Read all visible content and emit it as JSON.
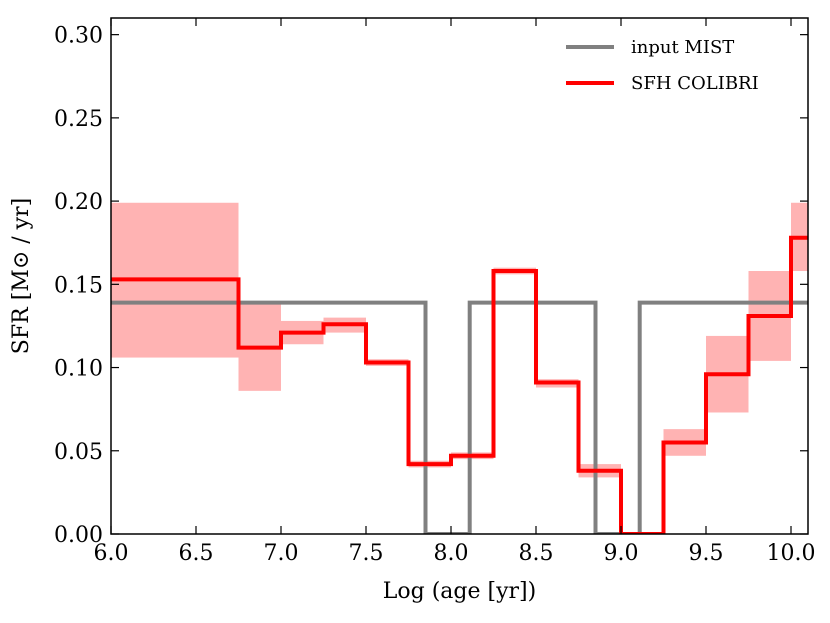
{
  "chart_data": {
    "type": "line",
    "xlabel": "Log (age [yr])",
    "ylabel": "SFR [M⊙ / yr]",
    "xlim": [
      6.0,
      10.1
    ],
    "ylim": [
      0.0,
      0.31
    ],
    "xticks": [
      {
        "value": 6.0,
        "label": "6.0"
      },
      {
        "value": 6.5,
        "label": "6.5"
      },
      {
        "value": 7.0,
        "label": "7.0"
      },
      {
        "value": 7.5,
        "label": "7.5"
      },
      {
        "value": 8.0,
        "label": "8.0"
      },
      {
        "value": 8.5,
        "label": "8.5"
      },
      {
        "value": 9.0,
        "label": "9.0"
      },
      {
        "value": 9.5,
        "label": "9.5"
      },
      {
        "value": 10.0,
        "label": "10.0"
      }
    ],
    "yticks": [
      {
        "value": 0.0,
        "label": "0.00"
      },
      {
        "value": 0.05,
        "label": "0.05"
      },
      {
        "value": 0.1,
        "label": "0.10"
      },
      {
        "value": 0.15,
        "label": "0.15"
      },
      {
        "value": 0.2,
        "label": "0.20"
      },
      {
        "value": 0.25,
        "label": "0.25"
      },
      {
        "value": 0.3,
        "label": "0.30"
      }
    ],
    "legend": {
      "position": "top-right",
      "entries": [
        {
          "label": "input MIST",
          "series": "input_mist"
        },
        {
          "label": "SFH COLIBRI",
          "series": "sfh_colibri"
        }
      ]
    },
    "series": [
      {
        "name": "input MIST",
        "id": "input_mist",
        "color": "#808080",
        "style": "steps",
        "x": [
          6.0,
          7.85,
          7.85,
          8.11,
          8.11,
          8.85,
          8.85,
          9.11,
          9.11,
          10.1
        ],
        "y": [
          0.139,
          0.139,
          0.0,
          0.0,
          0.139,
          0.139,
          0.0,
          0.0,
          0.139,
          0.139
        ]
      },
      {
        "name": "SFH COLIBRI",
        "id": "sfh_colibri",
        "color": "#ff0000",
        "style": "bins",
        "bins": [
          {
            "x0": 6.0,
            "x1": 6.75,
            "value": 0.153,
            "low": 0.106,
            "high": 0.199
          },
          {
            "x0": 6.75,
            "x1": 7.0,
            "value": 0.112,
            "low": 0.086,
            "high": 0.138
          },
          {
            "x0": 7.0,
            "x1": 7.25,
            "value": 0.121,
            "low": 0.114,
            "high": 0.128
          },
          {
            "x0": 7.25,
            "x1": 7.5,
            "value": 0.126,
            "low": 0.121,
            "high": 0.13
          },
          {
            "x0": 7.5,
            "x1": 7.75,
            "value": 0.103,
            "low": 0.101,
            "high": 0.105
          },
          {
            "x0": 7.75,
            "x1": 8.0,
            "value": 0.042,
            "low": 0.04,
            "high": 0.044
          },
          {
            "x0": 8.0,
            "x1": 8.25,
            "value": 0.047,
            "low": 0.045,
            "high": 0.049
          },
          {
            "x0": 8.25,
            "x1": 8.5,
            "value": 0.158,
            "low": 0.156,
            "high": 0.16
          },
          {
            "x0": 8.5,
            "x1": 8.75,
            "value": 0.091,
            "low": 0.088,
            "high": 0.093
          },
          {
            "x0": 8.75,
            "x1": 9.0,
            "value": 0.038,
            "low": 0.034,
            "high": 0.042
          },
          {
            "x0": 9.0,
            "x1": 9.25,
            "value": 0.0,
            "low": 0.0,
            "high": 0.001
          },
          {
            "x0": 9.25,
            "x1": 9.5,
            "value": 0.055,
            "low": 0.047,
            "high": 0.063
          },
          {
            "x0": 9.5,
            "x1": 9.75,
            "value": 0.096,
            "low": 0.073,
            "high": 0.119
          },
          {
            "x0": 9.75,
            "x1": 10.0,
            "value": 0.131,
            "low": 0.104,
            "high": 0.158
          },
          {
            "x0": 10.0,
            "x1": 10.1,
            "value": 0.178,
            "low": 0.158,
            "high": 0.199
          }
        ],
        "band_color": "#ffb3b3"
      }
    ]
  }
}
